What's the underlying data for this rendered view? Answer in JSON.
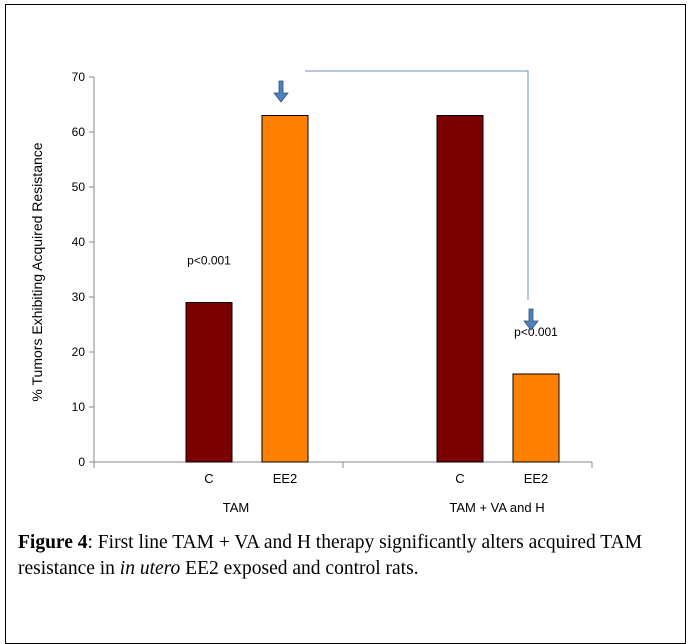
{
  "chart_data": {
    "type": "bar",
    "ylabel": "% Tumors Exhibiting Acquired Resistance",
    "xlabel": "",
    "ylim": [
      0,
      70
    ],
    "yticks": [
      0,
      10,
      20,
      30,
      40,
      50,
      60,
      70
    ],
    "groups": [
      {
        "name": "TAM",
        "bars": [
          {
            "label": "C",
            "value": 29,
            "color": "#7b0000",
            "annotation": "p<0.001"
          },
          {
            "label": "EE2",
            "value": 63,
            "color": "#ff8000",
            "annotation": ""
          }
        ]
      },
      {
        "name": "TAM + VA and H",
        "bars": [
          {
            "label": "C",
            "value": 63,
            "color": "#7b0000",
            "annotation": ""
          },
          {
            "label": "EE2",
            "value": 16,
            "color": "#ff8000",
            "annotation": "p<0.001"
          }
        ]
      }
    ],
    "arrow_color": "#4f81bd",
    "bracket_color": "#6b8ec2"
  },
  "caption": {
    "label": "Figure 4",
    "text_1": ": First line TAM + VA and H therapy significantly alters acquired TAM resistance in ",
    "italic": "in utero",
    "text_2": " EE2 exposed and control rats."
  }
}
